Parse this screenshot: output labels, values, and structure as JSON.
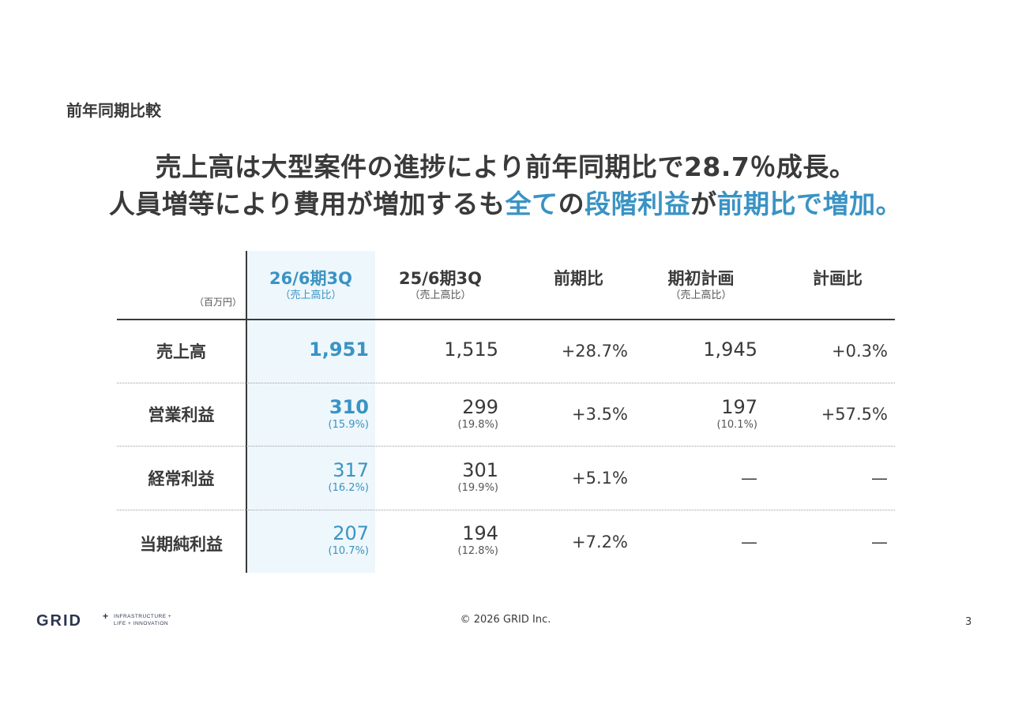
{
  "section_label": "前年同期比較",
  "headline": {
    "line1": "売上高は大型案件の進捗により前年同期比で28.7％成長。",
    "line2_parts": [
      {
        "text": "人員増等により費用が増加するも",
        "accent": false
      },
      {
        "text": "全て",
        "accent": true
      },
      {
        "text": "の",
        "accent": false
      },
      {
        "text": "段階利益",
        "accent": true
      },
      {
        "text": "が",
        "accent": false
      },
      {
        "text": "前期比で増加。",
        "accent": true
      }
    ]
  },
  "table": {
    "unit": "（百万円）",
    "columns": [
      {
        "main": "26/6期3Q",
        "sub": "（売上高比）"
      },
      {
        "main": "25/6期3Q",
        "sub": "（売上高比）"
      },
      {
        "main": "前期比",
        "sub": ""
      },
      {
        "main": "期初計画",
        "sub": "（売上高比）"
      },
      {
        "main": "計画比",
        "sub": ""
      }
    ],
    "rows": [
      {
        "label": "売上高",
        "cells": [
          {
            "v": "1,951",
            "p": ""
          },
          {
            "v": "1,515",
            "p": ""
          },
          {
            "v": "+28.7%",
            "p": ""
          },
          {
            "v": "1,945",
            "p": ""
          },
          {
            "v": "+0.3%",
            "p": ""
          }
        ]
      },
      {
        "label": "営業利益",
        "cells": [
          {
            "v": "310",
            "p": "(15.9%)"
          },
          {
            "v": "299",
            "p": "(19.8%)"
          },
          {
            "v": "+3.5%",
            "p": ""
          },
          {
            "v": "197",
            "p": "(10.1%)"
          },
          {
            "v": "+57.5%",
            "p": ""
          }
        ]
      },
      {
        "label": "経常利益",
        "cells": [
          {
            "v": "317",
            "p": "(16.2%)"
          },
          {
            "v": "301",
            "p": "(19.9%)"
          },
          {
            "v": "+5.1%",
            "p": ""
          },
          {
            "v": "—",
            "p": ""
          },
          {
            "v": "—",
            "p": ""
          }
        ]
      },
      {
        "label": "当期純利益",
        "cells": [
          {
            "v": "207",
            "p": "(10.7%)"
          },
          {
            "v": "194",
            "p": "(12.8%)"
          },
          {
            "v": "+7.2%",
            "p": ""
          },
          {
            "v": "—",
            "p": ""
          },
          {
            "v": "—",
            "p": ""
          }
        ]
      }
    ]
  },
  "footer": {
    "logo_text": "GRID",
    "logo_plus": "+",
    "tagline_1": "INFRASTRUCTURE +",
    "tagline_2": "LIFE + INNOVATION",
    "copyright": "© 2026 GRID Inc.",
    "page": "3"
  },
  "colors": {
    "accent": "#3a93c4",
    "text": "#3a3a3a",
    "highlight_bg": "#eef7fb"
  }
}
